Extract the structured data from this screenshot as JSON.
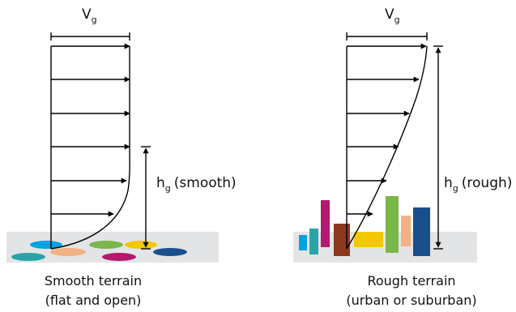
{
  "left_panel": {
    "velocity_symbol": "V",
    "velocity_subscript": "g",
    "height_symbol": "h",
    "height_subscript": "g",
    "height_qualifier": "(smooth)",
    "caption_line1": "Smooth terrain",
    "caption_line2": "(flat and open)"
  },
  "right_panel": {
    "velocity_symbol": "V",
    "velocity_subscript": "g",
    "height_symbol": "h",
    "height_subscript": "g",
    "height_qualifier": "(rough)",
    "caption_line1": "Rough terrain",
    "caption_line2": "(urban or suburban)"
  },
  "colors": {
    "ground": "#e3e4e5",
    "line": "#000000",
    "obstacles": [
      "#00a3e0",
      "#2aa3a8",
      "#f4b183",
      "#7ab648",
      "#b3196e",
      "#f2c800",
      "#1b4f8c",
      "#8b3a1e"
    ]
  }
}
